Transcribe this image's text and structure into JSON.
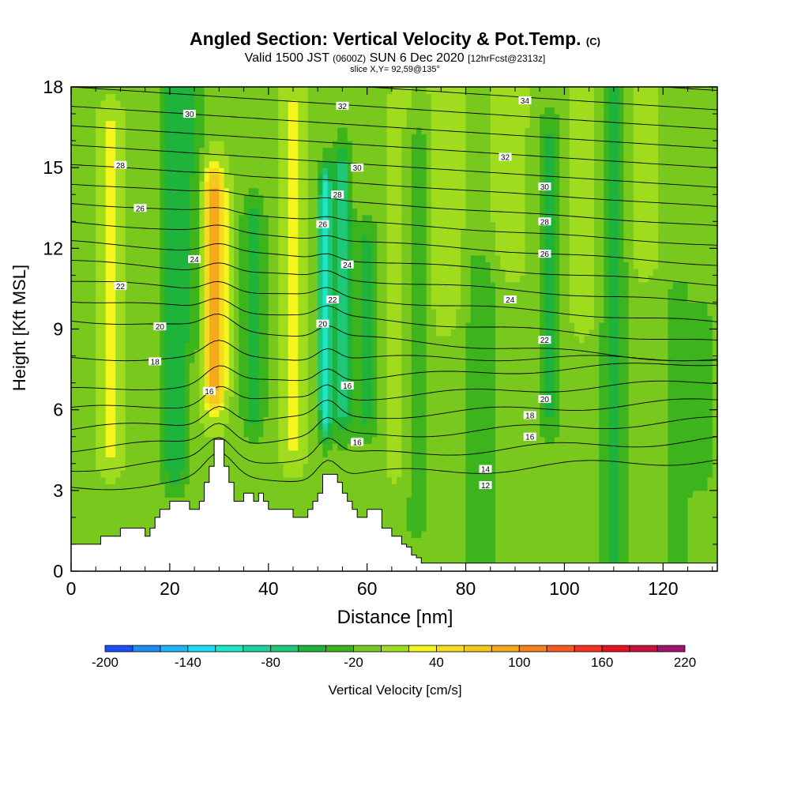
{
  "title": {
    "main": "Angled Section: Vertical Velocity & Pot.Temp.",
    "main_tag": "(C)",
    "valid_prefix": "Valid 1500 JST",
    "valid_zulu": "(0600Z)",
    "valid_date": "SUN 6 Dec 2020",
    "forecast": "[12hrFcst@2313z]",
    "slice": "slice X,Y= 92,59@135°"
  },
  "chart_data": {
    "type": "heatmap",
    "xlabel": "Distance [nm]",
    "ylabel": "Height [Kft MSL]",
    "xlim": [
      0,
      131
    ],
    "ylim": [
      0,
      18
    ],
    "x_ticks": [
      0,
      20,
      40,
      60,
      80,
      100,
      120
    ],
    "y_ticks": [
      0,
      3,
      6,
      9,
      12,
      15,
      18
    ],
    "colorbar": {
      "label": "Vertical Velocity [cm/s]",
      "tick_labels": [
        "-200",
        "-140",
        "-80",
        "-20",
        "40",
        "100",
        "160",
        "220"
      ],
      "min": -200,
      "max": 220,
      "step": 20,
      "colors": [
        "#1e0ff0",
        "#1e50f5",
        "#1e8cf5",
        "#1eb4f5",
        "#1edcf5",
        "#1ee6c8",
        "#1ed2a0",
        "#1ec878",
        "#1eb43c",
        "#3cb41e",
        "#78c81e",
        "#a0dc1e",
        "#f5f51e",
        "#f5dc1e",
        "#f5c81e",
        "#f5aa1e",
        "#f5821e",
        "#f55a1e",
        "#f5321e",
        "#e6141e",
        "#c8143c",
        "#a0146e",
        "#6e1496"
      ]
    },
    "terrain_profile": {
      "distance_nm": [
        0,
        5,
        6,
        10,
        12,
        15,
        16,
        17,
        18,
        19,
        20,
        22,
        24,
        26,
        27,
        28,
        29,
        30,
        31,
        32,
        33,
        34,
        35,
        36,
        37,
        38,
        39,
        40,
        41,
        42,
        43,
        44,
        45,
        46,
        47,
        48,
        49,
        50,
        51,
        52,
        53,
        54,
        55,
        56,
        57,
        58,
        59,
        60,
        61,
        62,
        63,
        64,
        65,
        66,
        67,
        68,
        69,
        70,
        71,
        72,
        131
      ],
      "height_kft": [
        1.0,
        1.0,
        1.3,
        1.6,
        1.6,
        1.3,
        1.6,
        2.0,
        2.3,
        2.3,
        2.6,
        2.6,
        2.3,
        2.6,
        3.3,
        3.9,
        4.9,
        4.9,
        3.9,
        3.3,
        2.6,
        2.6,
        2.9,
        2.9,
        2.6,
        2.9,
        2.6,
        2.3,
        2.3,
        2.3,
        2.3,
        2.3,
        2.0,
        2.0,
        2.0,
        2.3,
        2.6,
        2.9,
        3.6,
        3.6,
        3.6,
        3.3,
        2.9,
        2.6,
        2.3,
        2.0,
        2.0,
        2.3,
        2.3,
        2.3,
        1.6,
        1.6,
        1.3,
        1.3,
        1.0,
        0.9,
        0.6,
        0.5,
        0.3,
        0.3,
        0.3
      ]
    },
    "theta_contour_labels": [
      {
        "text": "30",
        "x": 24,
        "y": 17.0
      },
      {
        "text": "32",
        "x": 55,
        "y": 17.3
      },
      {
        "text": "34",
        "x": 92,
        "y": 17.5
      },
      {
        "text": "28",
        "x": 10,
        "y": 15.1
      },
      {
        "text": "30",
        "x": 58,
        "y": 15.0
      },
      {
        "text": "32",
        "x": 88,
        "y": 15.4
      },
      {
        "text": "28",
        "x": 54,
        "y": 14.0
      },
      {
        "text": "30",
        "x": 96,
        "y": 14.3
      },
      {
        "text": "26",
        "x": 14,
        "y": 13.5
      },
      {
        "text": "28",
        "x": 96,
        "y": 13.0
      },
      {
        "text": "26",
        "x": 51,
        "y": 12.9
      },
      {
        "text": "26",
        "x": 96,
        "y": 11.8
      },
      {
        "text": "24",
        "x": 25,
        "y": 11.6
      },
      {
        "text": "24",
        "x": 56,
        "y": 11.4
      },
      {
        "text": "22",
        "x": 10,
        "y": 10.6
      },
      {
        "text": "22",
        "x": 53,
        "y": 10.1
      },
      {
        "text": "24",
        "x": 89,
        "y": 10.1
      },
      {
        "text": "20",
        "x": 18,
        "y": 9.1
      },
      {
        "text": "20",
        "x": 51,
        "y": 9.2
      },
      {
        "text": "22",
        "x": 96,
        "y": 8.6
      },
      {
        "text": "18",
        "x": 17,
        "y": 7.8
      },
      {
        "text": "16",
        "x": 56,
        "y": 6.9
      },
      {
        "text": "16",
        "x": 28,
        "y": 6.7
      },
      {
        "text": "20",
        "x": 96,
        "y": 6.4
      },
      {
        "text": "18",
        "x": 93,
        "y": 5.8
      },
      {
        "text": "16",
        "x": 93,
        "y": 5.0
      },
      {
        "text": "16",
        "x": 58,
        "y": 4.8
      },
      {
        "text": "14",
        "x": 84,
        "y": 3.8
      },
      {
        "text": "12",
        "x": 84,
        "y": 3.2
      }
    ]
  }
}
